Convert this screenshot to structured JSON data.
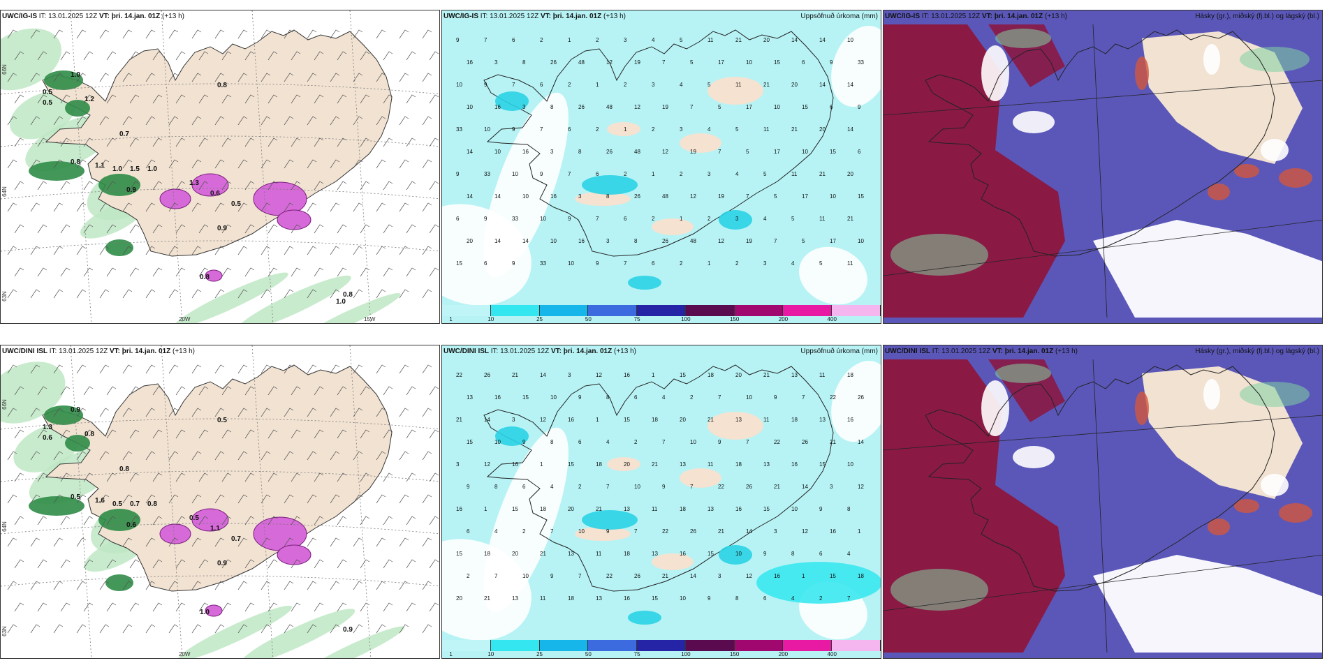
{
  "rows": [
    {
      "model_label": "UWC/IG-IS",
      "it_label": "IT: 13.01.2025 12Z",
      "vt_label": "VT: þri. 14.jan. 01Z",
      "lead_label": "(+13 h)"
    },
    {
      "model_label": "UWC/DINI ISL",
      "it_label": "IT: 13.01.2025 12Z",
      "vt_label": "VT: þri. 14.jan. 01Z",
      "lead_label": "(+13 h)"
    }
  ],
  "precip_title": "Uppsöfnuð úrkoma (mm)",
  "cloud_title": "Hásky (gr.), miðský (fj.bl.) og lágský (bl.)",
  "colorbar": {
    "colors": [
      "#bff5f7",
      "#33e6ef",
      "#16b6ea",
      "#3c6be0",
      "#2523a6",
      "#5a0a4e",
      "#a0086f",
      "#e81aa4",
      "#f5b6f0"
    ],
    "labels": [
      "1",
      "10",
      "25",
      "50",
      "75",
      "100",
      "150",
      "200",
      "400"
    ]
  },
  "gridlabels": {
    "lat": [
      "66N",
      "64N",
      "63N"
    ],
    "lon": [
      "20W",
      "15W"
    ]
  },
  "wind_labels_top": [
    "1.0",
    "0.5",
    "0.5",
    "1.2",
    "0.8",
    "0.7",
    "0.8",
    "1.1",
    "1.0",
    "1.5",
    "1.0",
    "0.9",
    "1.3",
    "0.6",
    "0.5",
    "0.9",
    "0.8",
    "0.8",
    "1.0"
  ],
  "wind_labels_bottom": [
    "0.9",
    "1.3",
    "0.6",
    "0.8",
    "0.5",
    "0.8",
    "0.5",
    "1.6",
    "0.5",
    "0.7",
    "0.8",
    "0.6",
    "0.5",
    "1.1",
    "0.7",
    "0.9",
    "1.0",
    "0.9"
  ],
  "precip_labels_top": [
    "9",
    "7",
    "6",
    "2",
    "1",
    "2",
    "3",
    "4",
    "5",
    "11",
    "21",
    "20",
    "14",
    "14",
    "10",
    "16",
    "3",
    "8",
    "26",
    "48",
    "12",
    "19",
    "7",
    "5",
    "17",
    "10",
    "15",
    "6",
    "9",
    "33",
    "10"
  ],
  "precip_labels_bottom": [
    "10",
    "9",
    "7",
    "22",
    "26",
    "21",
    "14",
    "3",
    "12",
    "16",
    "1",
    "15",
    "18",
    "20",
    "21",
    "13",
    "11",
    "18",
    "13",
    "16",
    "15",
    "10",
    "9",
    "8",
    "6",
    "4",
    "2",
    "7"
  ],
  "legend_colors": {
    "land": "#f2e3d3",
    "wind_green": "#2f9e4f",
    "magenta": "#d24fd6",
    "high_cloud": "#8c1942",
    "mid_cloud": "#5a56b8",
    "precip_base": "#b5f2f4"
  }
}
